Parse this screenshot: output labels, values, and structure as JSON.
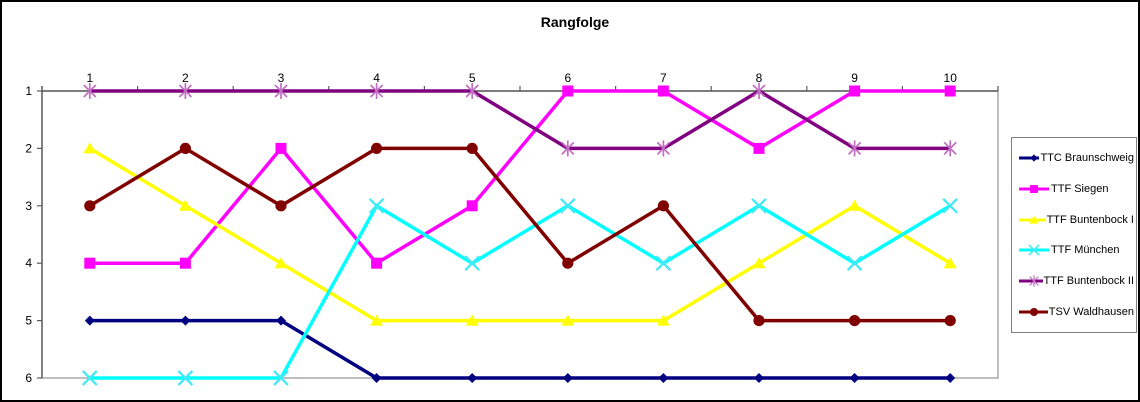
{
  "chart_data": {
    "type": "line",
    "title": "Rangfolge",
    "x": [
      1,
      2,
      3,
      4,
      5,
      6,
      7,
      8,
      9,
      10
    ],
    "xlabel": "",
    "ylabel": "",
    "x_axis_position": "top",
    "y_axis": {
      "ticks": [
        1,
        2,
        3,
        4,
        5,
        6
      ],
      "inverted": true
    },
    "grid": false,
    "legend_position": "right",
    "colors": {
      "axis": "#5a5a5a",
      "plot_border": "#9a9a9a",
      "legend_border": "#7f7f7f",
      "background": "#ffffff"
    },
    "series": [
      {
        "name": "TTC Braunschweig",
        "color": "#000080",
        "marker": "diamond",
        "marker_color": "#000080",
        "values": [
          5,
          5,
          5,
          6,
          6,
          6,
          6,
          6,
          6,
          6
        ]
      },
      {
        "name": "TTF Siegen",
        "color": "#ff00ff",
        "marker": "square",
        "marker_color": "#ff00ff",
        "values": [
          4,
          4,
          2,
          4,
          3,
          1,
          1,
          2,
          1,
          1
        ]
      },
      {
        "name": "TTF Buntenbock I",
        "color": "#ffff00",
        "marker": "triangle",
        "marker_color": "#ffff00",
        "values": [
          2,
          3,
          4,
          5,
          5,
          5,
          5,
          4,
          3,
          4
        ]
      },
      {
        "name": "TTF München",
        "color": "#00ffff",
        "marker": "x",
        "marker_color": "#45e9f5",
        "values": [
          6,
          6,
          6,
          3,
          4,
          3,
          4,
          3,
          4,
          3
        ]
      },
      {
        "name": "TTF Buntenbock II",
        "color": "#800080",
        "marker": "asterisk",
        "marker_color": "#c26fc2",
        "values": [
          1,
          1,
          1,
          1,
          1,
          2,
          2,
          1,
          2,
          2
        ]
      },
      {
        "name": "TSV Waldhausen",
        "color": "#800000",
        "marker": "circle",
        "marker_color": "#800000",
        "values": [
          3,
          2,
          3,
          2,
          2,
          4,
          3,
          5,
          5,
          5
        ]
      }
    ]
  }
}
